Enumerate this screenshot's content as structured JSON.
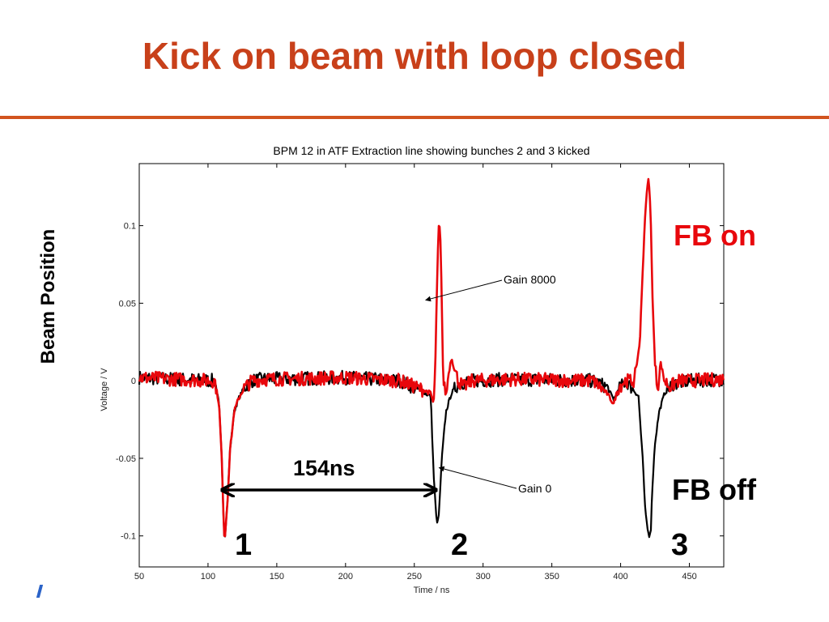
{
  "slide": {
    "title": "Kick on beam with loop closed",
    "y_side_label": "Beam Position",
    "fb_on_label": "FB on",
    "fb_off_label": "FB off",
    "bunch_labels": [
      "1",
      "2",
      "3"
    ],
    "interval_label": "154ns"
  },
  "colors": {
    "title": "#c8401a",
    "rule": "#d2541e",
    "fb_on": "#e8070c",
    "gain8000_trace": "#e8070c",
    "gain0_trace": "#000000"
  },
  "chart_data": {
    "type": "line",
    "title": "BPM 12 in ATF Extraction line showing bunches 2 and 3 kicked",
    "xlabel": "Time / ns",
    "ylabel": "Voltage / V",
    "xlim": [
      50,
      475
    ],
    "ylim": [
      -0.12,
      0.14
    ],
    "x_ticks": [
      50,
      100,
      150,
      200,
      250,
      300,
      350,
      400,
      450
    ],
    "y_ticks": [
      -0.1,
      -0.05,
      0,
      0.05,
      0.1
    ],
    "y_tick_labels": [
      "-0.1",
      "-0.05",
      "0",
      "0.05",
      "0.1"
    ],
    "grid": false,
    "annotations": [
      {
        "text": "Gain 8000",
        "x": 270,
        "y": 0.052
      },
      {
        "text": "Gain 0",
        "x": 268,
        "y": -0.056
      }
    ],
    "series": [
      {
        "name": "Gain 0",
        "color": "#000000",
        "x": [
          50,
          105,
          108,
          110,
          111,
          112,
          114,
          116,
          119,
          122,
          126,
          132,
          140,
          200,
          240,
          262,
          264,
          266,
          267,
          268,
          270,
          273,
          277,
          282,
          290,
          320,
          380,
          390,
          395,
          400,
          404,
          413,
          416,
          418,
          420,
          421,
          422,
          423,
          425,
          428,
          432,
          438,
          450,
          475
        ],
        "y": [
          0.002,
          0.0,
          -0.015,
          -0.05,
          -0.08,
          -0.104,
          -0.08,
          -0.045,
          -0.02,
          -0.012,
          -0.005,
          0.0,
          0.001,
          0.002,
          0.0,
          -0.01,
          -0.06,
          -0.088,
          -0.092,
          -0.085,
          -0.05,
          -0.02,
          -0.008,
          -0.002,
          0.0,
          0.001,
          0.0,
          -0.004,
          -0.012,
          -0.004,
          0.0,
          -0.01,
          -0.05,
          -0.085,
          -0.098,
          -0.1,
          -0.095,
          -0.07,
          -0.04,
          -0.02,
          -0.008,
          -0.002,
          0.0,
          0.001
        ]
      },
      {
        "name": "Gain 8000",
        "color": "#e8070c",
        "x": [
          50,
          105,
          108,
          110,
          111,
          112,
          114,
          116,
          119,
          122,
          126,
          132,
          140,
          200,
          240,
          262,
          264,
          265,
          266,
          267,
          268,
          269,
          270,
          271,
          273,
          275,
          277,
          279,
          282,
          286,
          292,
          320,
          380,
          390,
          395,
          398,
          403,
          410,
          414,
          416,
          418,
          420,
          421,
          422,
          423,
          425,
          427,
          429,
          432,
          436,
          442,
          450,
          475
        ],
        "y": [
          0.002,
          0.0,
          -0.015,
          -0.05,
          -0.08,
          -0.104,
          -0.08,
          -0.045,
          -0.02,
          -0.012,
          -0.005,
          0.0,
          0.001,
          0.002,
          0.0,
          -0.008,
          -0.015,
          0.0,
          0.04,
          0.08,
          0.104,
          0.09,
          0.05,
          0.0,
          -0.01,
          0.005,
          0.015,
          0.008,
          0.0,
          -0.004,
          0.0,
          0.001,
          0.0,
          -0.008,
          -0.015,
          -0.005,
          0.0,
          0.0,
          0.025,
          0.07,
          0.11,
          0.13,
          0.125,
          0.1,
          0.06,
          0.01,
          -0.005,
          0.012,
          0.0,
          -0.004,
          0.0,
          0.0,
          0.001
        ]
      }
    ]
  }
}
